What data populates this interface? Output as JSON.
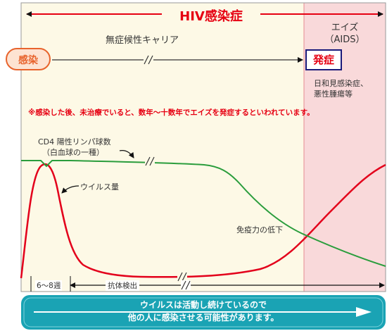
{
  "title": "HIV感染症",
  "phases": {
    "carrier_label": "無症候性キャリア",
    "aids_label": "エイズ",
    "aids_sub": "（AIDS）",
    "aids_desc": [
      "日和見感染症、",
      "悪性腫瘍等"
    ]
  },
  "events": {
    "infection": "感染",
    "onset": "発症"
  },
  "note": "※感染した後、未治療でいると、数年～十数年でエイズを発症するといわれています。",
  "curves": {
    "cd4_label_line1": "CD4 陽性リンパ球数",
    "cd4_label_line2": "（白血球の一種）",
    "virus_label": "ウイルス量",
    "immunity_label": "免疫力の低下"
  },
  "timeline": {
    "window_label": "6～8週",
    "antibody_label": "抗体検出"
  },
  "footer": {
    "line1": "ウイルスは活動し続けているので",
    "line2": "他の人に感染させる可能性があります。"
  },
  "colors": {
    "title_red": "#e60012",
    "chart_bg": "#fdf9e6",
    "aids_bg": "#f9d9da",
    "cd4_green": "#2a9d3c",
    "virus_red": "#e3001b",
    "infection_fill": "#fde3d2",
    "infection_border": "#e8632c",
    "onset_border": "#1a1a7a",
    "footer_teal": "#1aa3b4"
  },
  "icons": {
    "break_mark": "double-slash",
    "arrow": "arrow-right"
  }
}
